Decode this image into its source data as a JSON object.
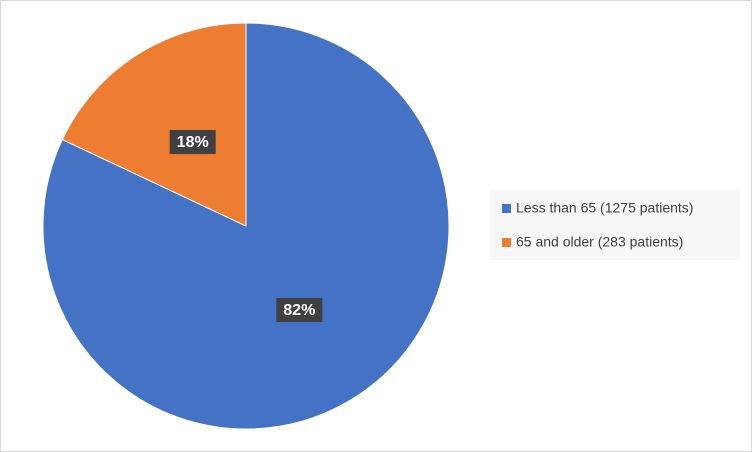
{
  "chart_data": {
    "type": "pie",
    "categories": [
      "Less than 65 (1275 patients)",
      "65 and older (283 patients)"
    ],
    "values": [
      82,
      18
    ],
    "value_labels": [
      "82%",
      "18%"
    ],
    "colors": [
      "#4472c4",
      "#ed7d31"
    ],
    "legend": "right"
  }
}
